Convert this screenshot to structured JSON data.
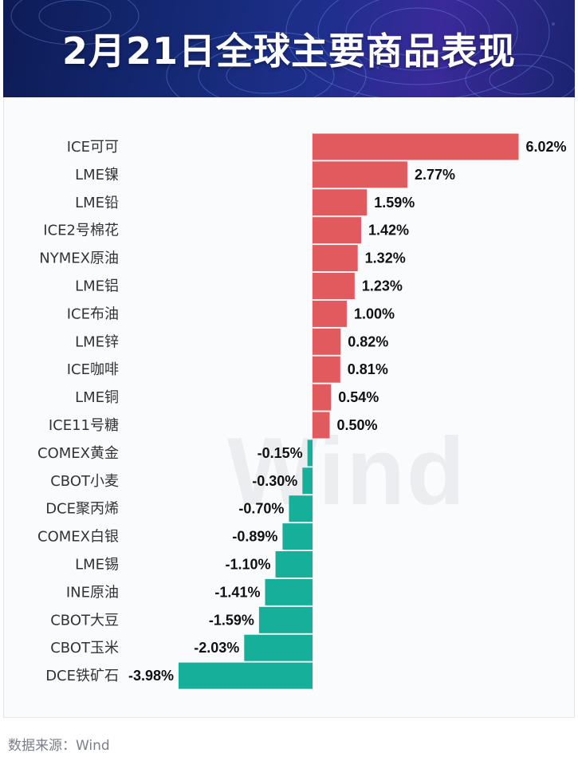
{
  "title": "2月21日全球主要商品表现",
  "source": "数据来源：Wind",
  "watermark": "Wind",
  "colors": {
    "positive": "#e05a5e",
    "negative": "#16b09a"
  },
  "chart_data": {
    "type": "bar",
    "orientation": "horizontal",
    "title": "2月21日全球主要商品表现",
    "xlabel": "",
    "ylabel": "",
    "value_suffix": "%",
    "categories": [
      "ICE可可",
      "LME镍",
      "LME铅",
      "ICE2号棉花",
      "NYMEX原油",
      "LME铝",
      "ICE布油",
      "LME锌",
      "ICE咖啡",
      "LME铜",
      "ICE11号糖",
      "COMEX黄金",
      "CBOT小麦",
      "DCE聚丙烯",
      "COMEX白银",
      "LME锡",
      "INE原油",
      "CBOT大豆",
      "CBOT玉米",
      "DCE铁矿石"
    ],
    "values": [
      6.02,
      2.77,
      1.59,
      1.42,
      1.32,
      1.23,
      1.0,
      0.82,
      0.81,
      0.54,
      0.5,
      -0.15,
      -0.3,
      -0.7,
      -0.89,
      -1.1,
      -1.41,
      -1.59,
      -2.03,
      -3.98
    ],
    "xlim": [
      -3.98,
      6.02
    ],
    "grid": false,
    "legend": "none"
  }
}
